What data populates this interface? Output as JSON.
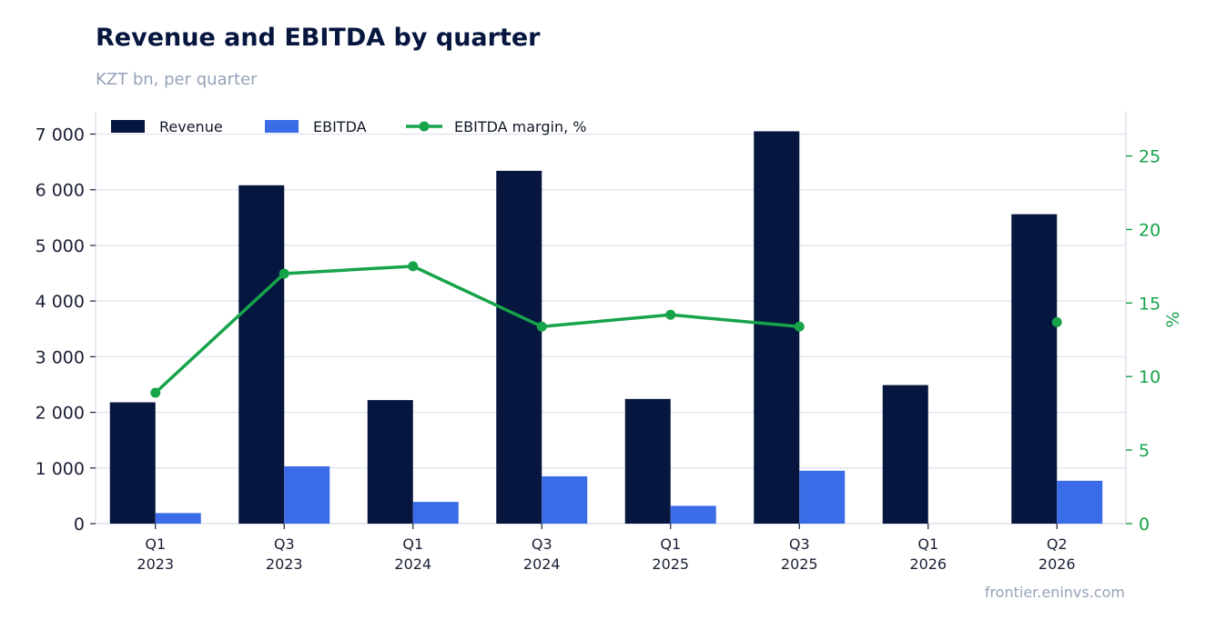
{
  "header": {
    "title": "Revenue and EBITDA by quarter",
    "subtitle": "KZT bn, per quarter"
  },
  "footer": {
    "source": "frontier.eninvs.com"
  },
  "colors": {
    "revenue": "#06163f",
    "ebitda": "#3b6ce7",
    "margin": "#17a34a",
    "grid": "#e3e7f0",
    "axis": "#d5dae6"
  },
  "chart_data": {
    "type": "bar",
    "title": "Revenue and EBITDA by quarter",
    "subtitle": "KZT bn, per quarter",
    "categories": [
      [
        "Q1",
        "2023"
      ],
      [
        "Q3",
        "2023"
      ],
      [
        "Q1",
        "2024"
      ],
      [
        "Q3",
        "2024"
      ],
      [
        "Q1",
        "2025"
      ],
      [
        "Q3",
        "2025"
      ],
      [
        "Q1",
        "2026"
      ],
      [
        "Q2",
        "2026"
      ]
    ],
    "series": [
      {
        "name": "Revenue",
        "kind": "bar",
        "axis": "left",
        "values": [
          2180,
          6080,
          2220,
          6340,
          2240,
          7050,
          2490,
          5560
        ]
      },
      {
        "name": "EBITDA",
        "kind": "bar",
        "axis": "left",
        "values": [
          190,
          1030,
          390,
          850,
          320,
          950,
          null,
          770
        ]
      },
      {
        "name": "EBITDA margin, %",
        "kind": "line",
        "axis": "right",
        "values": [
          8.9,
          17.0,
          17.5,
          13.4,
          14.2,
          13.4,
          null,
          13.7
        ]
      }
    ],
    "y_left": {
      "ylim": [
        0,
        7400
      ],
      "ticks": [
        0,
        1000,
        2000,
        3000,
        4000,
        5000,
        6000,
        7000
      ],
      "tick_labels": [
        "0",
        "1 000",
        "2 000",
        "3 000",
        "4 000",
        "5 000",
        "6 000",
        "7 000"
      ]
    },
    "y_right": {
      "label": "%",
      "ylim": [
        0,
        28
      ],
      "ticks": [
        0,
        5,
        10,
        15,
        20,
        25
      ],
      "tick_labels": [
        "0",
        "5",
        "10",
        "15",
        "20",
        "25"
      ]
    },
    "grid": true,
    "legend": "top-left"
  }
}
